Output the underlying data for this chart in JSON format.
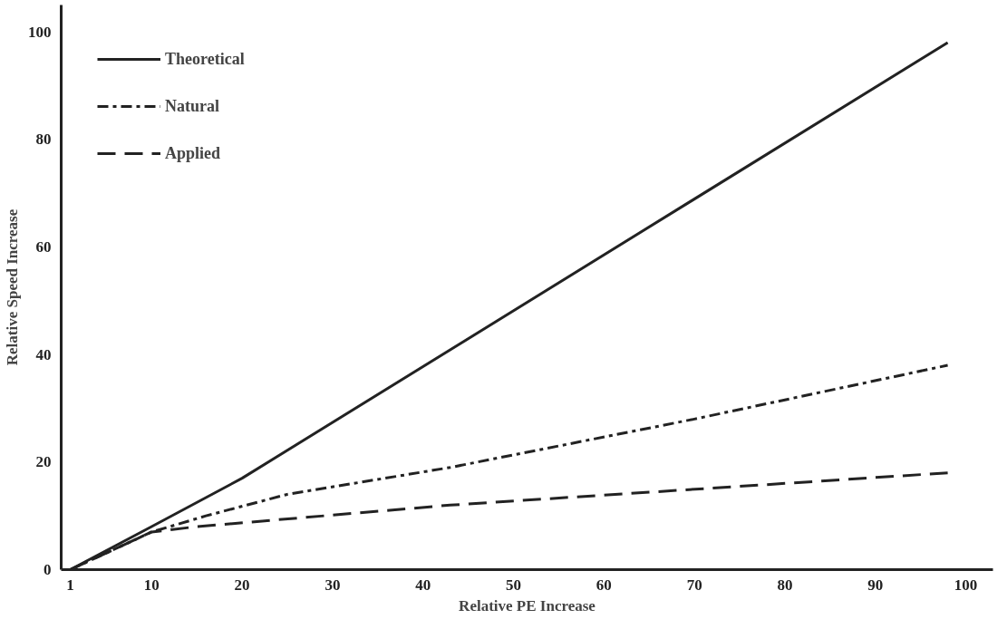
{
  "chart_data": {
    "type": "line",
    "xlabel": "Relative PE Increase",
    "ylabel": "Relative Speed Increase",
    "xlim": [
      0,
      103
    ],
    "ylim": [
      0,
      105
    ],
    "xticks": [
      1,
      10,
      20,
      30,
      40,
      50,
      60,
      70,
      80,
      90,
      100
    ],
    "yticks": [
      0,
      20,
      40,
      60,
      80,
      100
    ],
    "grid": false,
    "legend": "top left",
    "marker": "none",
    "series": [
      {
        "name": "Theoretical",
        "color": "#222222",
        "line_style": "solid",
        "x": [
          1,
          10,
          20,
          98
        ],
        "values": [
          0,
          8,
          17,
          98
        ]
      },
      {
        "name": "Natural",
        "color": "#222222",
        "line_style": "dotted",
        "x": [
          1,
          10,
          16,
          25,
          43,
          70,
          98
        ],
        "values": [
          0,
          7,
          10,
          14,
          19,
          28,
          38
        ]
      },
      {
        "name": "Applied",
        "color": "#222222",
        "line_style": "dashed",
        "x": [
          1,
          10,
          15,
          43,
          98
        ],
        "values": [
          0,
          7,
          8,
          12,
          18
        ]
      }
    ]
  }
}
